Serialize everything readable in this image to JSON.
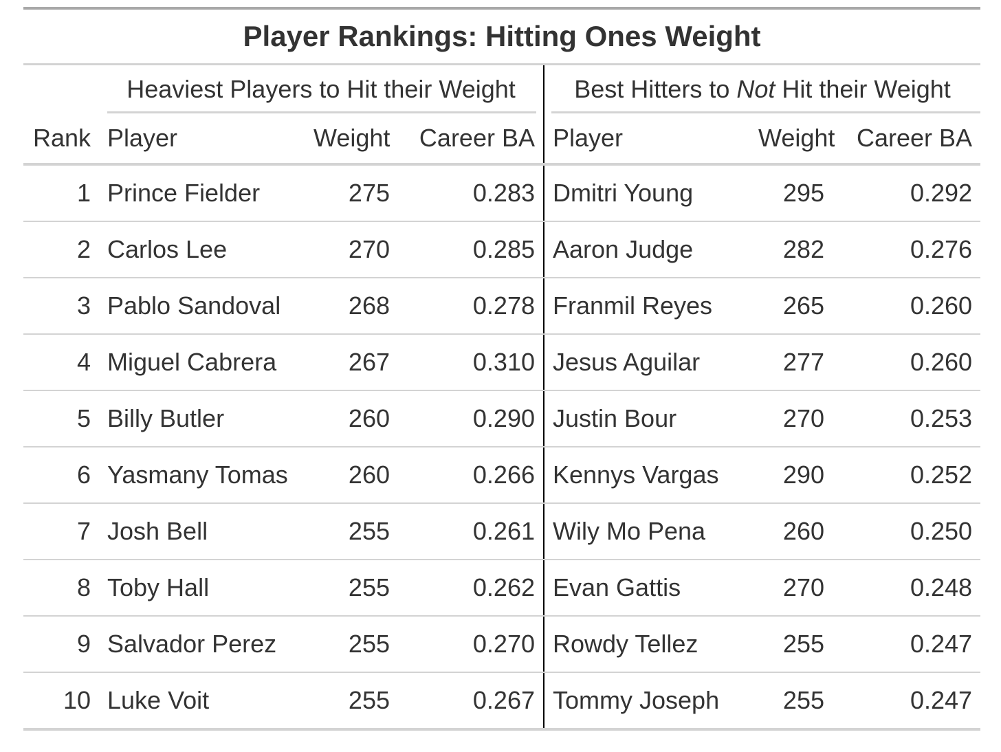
{
  "title": "Player Rankings: Hitting Ones Weight",
  "spanners": {
    "left": "Heaviest Players to Hit their Weight",
    "right_pre": "Best Hitters to ",
    "right_em": "Not",
    "right_post": " Hit their Weight"
  },
  "columns": {
    "rank": "Rank",
    "player_left": "Player",
    "weight_left": "Weight",
    "ba_left": "Career BA",
    "player_right": "Player",
    "weight_right": "Weight",
    "ba_right": "Career BA"
  },
  "rows": [
    {
      "rank": "1",
      "player_left": "Prince Fielder",
      "weight_left": "275",
      "ba_left": "0.283",
      "player_right": "Dmitri Young",
      "weight_right": "295",
      "ba_right": "0.292"
    },
    {
      "rank": "2",
      "player_left": "Carlos Lee",
      "weight_left": "270",
      "ba_left": "0.285",
      "player_right": "Aaron Judge",
      "weight_right": "282",
      "ba_right": "0.276"
    },
    {
      "rank": "3",
      "player_left": "Pablo Sandoval",
      "weight_left": "268",
      "ba_left": "0.278",
      "player_right": "Franmil Reyes",
      "weight_right": "265",
      "ba_right": "0.260"
    },
    {
      "rank": "4",
      "player_left": "Miguel Cabrera",
      "weight_left": "267",
      "ba_left": "0.310",
      "player_right": "Jesus Aguilar",
      "weight_right": "277",
      "ba_right": "0.260"
    },
    {
      "rank": "5",
      "player_left": "Billy Butler",
      "weight_left": "260",
      "ba_left": "0.290",
      "player_right": "Justin Bour",
      "weight_right": "270",
      "ba_right": "0.253"
    },
    {
      "rank": "6",
      "player_left": "Yasmany Tomas",
      "weight_left": "260",
      "ba_left": "0.266",
      "player_right": "Kennys Vargas",
      "weight_right": "290",
      "ba_right": "0.252"
    },
    {
      "rank": "7",
      "player_left": "Josh Bell",
      "weight_left": "255",
      "ba_left": "0.261",
      "player_right": "Wily Mo Pena",
      "weight_right": "260",
      "ba_right": "0.250"
    },
    {
      "rank": "8",
      "player_left": "Toby Hall",
      "weight_left": "255",
      "ba_left": "0.262",
      "player_right": "Evan Gattis",
      "weight_right": "270",
      "ba_right": "0.248"
    },
    {
      "rank": "9",
      "player_left": "Salvador Perez",
      "weight_left": "255",
      "ba_left": "0.270",
      "player_right": "Rowdy Tellez",
      "weight_right": "255",
      "ba_right": "0.247"
    },
    {
      "rank": "10",
      "player_left": "Luke Voit",
      "weight_left": "255",
      "ba_left": "0.267",
      "player_right": "Tommy Joseph",
      "weight_right": "255",
      "ba_right": "0.247"
    }
  ],
  "colors": {
    "text": "#333333",
    "rule": "#d3d3d3",
    "top_rule": "#a8a8a8",
    "divider": "#000000"
  }
}
